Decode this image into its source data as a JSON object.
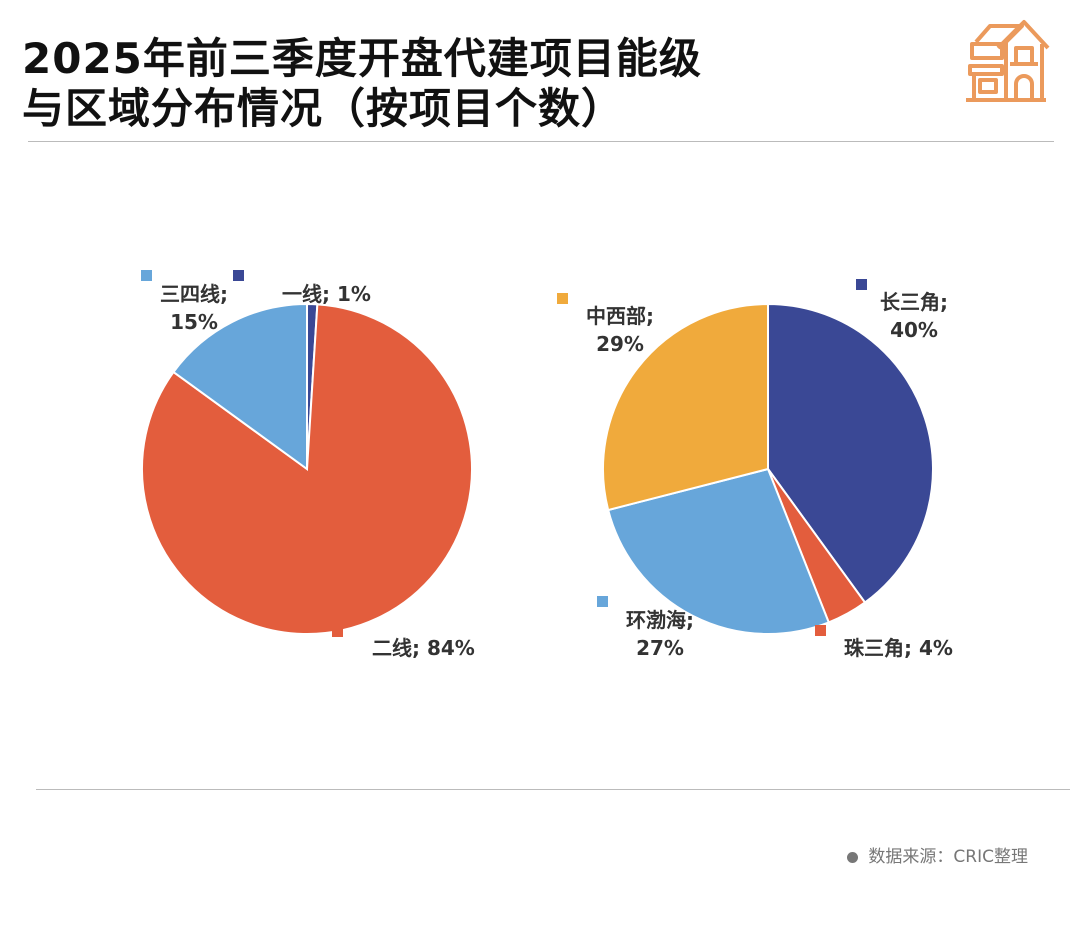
{
  "header": {
    "title_line1": "2025年前三季度开盘代建项目能级",
    "title_line2": "与区域分布情况（按项目个数）",
    "icon": "house-icon",
    "icon_color": "#eb9a5c"
  },
  "source": "数据来源：CRIC整理",
  "chart_data": [
    {
      "type": "pie",
      "categories": [
        "一线",
        "二线",
        "三四线"
      ],
      "values": [
        1,
        84,
        15
      ],
      "labels": [
        "一线; 1%",
        "二线; 84%",
        "三四线; 15%"
      ],
      "colors": [
        "#3a4895",
        "#e35d3d",
        "#67a6da"
      ],
      "start": "12 o'clock",
      "direction": "clockwise"
    },
    {
      "type": "pie",
      "categories": [
        "长三角",
        "珠三角",
        "环渤海",
        "中西部"
      ],
      "values": [
        40,
        4,
        27,
        29
      ],
      "labels": [
        "长三角; 40%",
        "珠三角; 4%",
        "环渤海; 27%",
        "中西部; 29%"
      ],
      "colors": [
        "#3a4895",
        "#e35d3d",
        "#67a6da",
        "#f0aa3c"
      ],
      "start": "12 o'clock",
      "direction": "clockwise"
    }
  ]
}
